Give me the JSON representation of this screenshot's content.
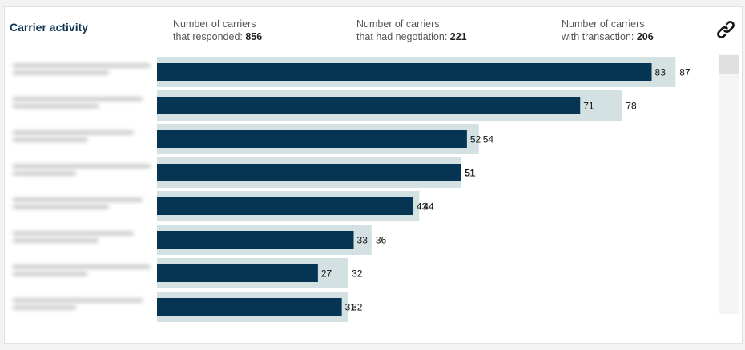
{
  "header": {
    "title": "Carrier activity",
    "stats": [
      {
        "line1": "Number of carriers",
        "line2": "that responded:",
        "value": "856"
      },
      {
        "line1": "Number of carriers",
        "line2": "that had negotiation:",
        "value": "221"
      },
      {
        "line1": "Number of carriers",
        "line2": "with transaction:",
        "value": "206"
      }
    ]
  },
  "icons": {
    "link": "link-icon"
  },
  "colors": {
    "front_bar": "#063553",
    "back_bar": "#d3e1e3",
    "title": "#0b3352"
  },
  "chart_data": {
    "type": "bar",
    "orientation": "horizontal",
    "categories": [
      "",
      "",
      "",
      "",
      "",
      "",
      "",
      ""
    ],
    "series": [
      {
        "values": [
          87,
          78,
          54,
          51,
          44,
          36,
          32,
          32
        ]
      },
      {
        "values": [
          83,
          71,
          52,
          51,
          43,
          33,
          27,
          31
        ]
      }
    ],
    "data_labels": true,
    "xlim": [
      0,
      87
    ],
    "grid": false,
    "legend": "none"
  }
}
